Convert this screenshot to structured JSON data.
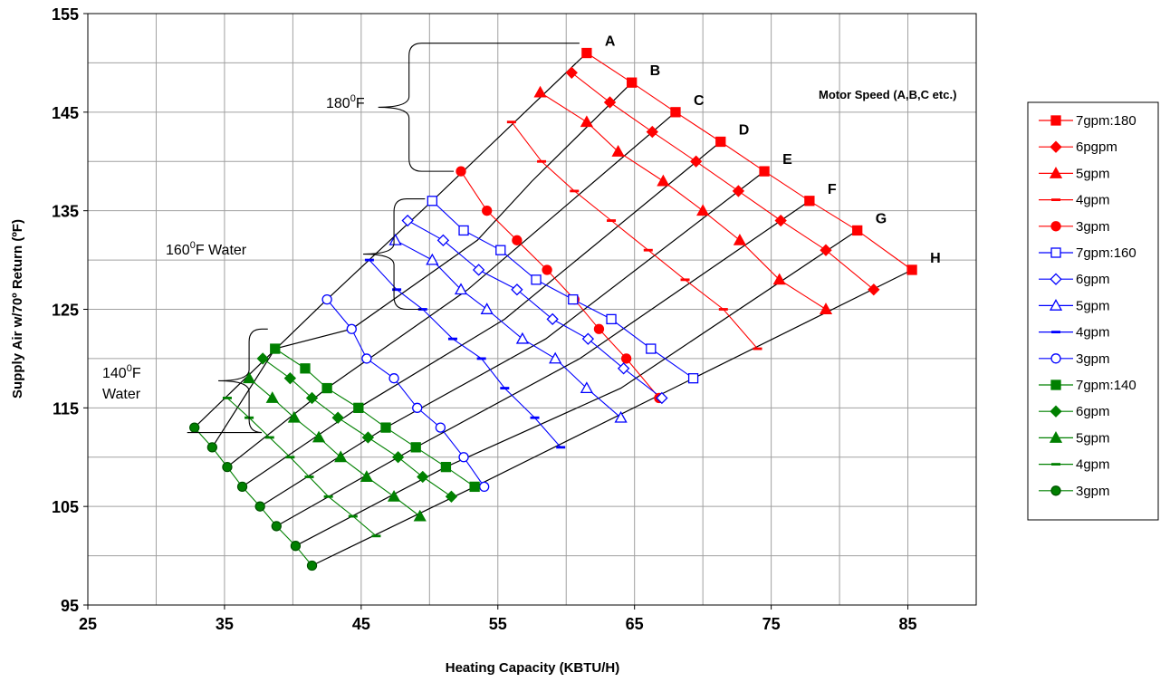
{
  "chart_data": {
    "type": "line",
    "title": "",
    "xlabel": "Heating Capacity (KBTU/H)",
    "ylabel": "Supply Air w/70º Return (ºF)",
    "xlim": [
      25,
      90
    ],
    "ylim": [
      95,
      155
    ],
    "xticks": [
      "25",
      "35",
      "45",
      "55",
      "65",
      "75",
      "85"
    ],
    "xtick_values": [
      25,
      35,
      45,
      55,
      65,
      75,
      85
    ],
    "yticks": [
      "95",
      "105",
      "115",
      "125",
      "135",
      "145",
      "155"
    ],
    "ytick_values": [
      95,
      105,
      115,
      125,
      135,
      145,
      155
    ],
    "grid": true,
    "legend_position": "right",
    "annotations": {
      "bracket_180": "180",
      "bracket_180_unit": "F",
      "bracket_160": "160",
      "bracket_160_unit": "F Water",
      "bracket_140": "140",
      "bracket_140_unit": "F",
      "bracket_140_line2": "Water",
      "degree_sup": "0",
      "motor_speed": "Motor Speed (A,B,C etc.)",
      "speed_letters": [
        "A",
        "B",
        "C",
        "D",
        "E",
        "F",
        "G",
        "H"
      ]
    },
    "speed_lines": [
      {
        "label": "A",
        "points": [
          [
            32.8,
            113
          ],
          [
            42.5,
            126
          ],
          [
            50.2,
            136
          ],
          [
            61.5,
            151
          ]
        ]
      },
      {
        "label": "B",
        "points": [
          [
            34.1,
            111
          ],
          [
            38.7,
            121
          ],
          [
            44.3,
            123
          ],
          [
            53.5,
            132
          ],
          [
            57.5,
            138
          ],
          [
            64.8,
            148
          ]
        ]
      },
      {
        "label": "C",
        "points": [
          [
            35.2,
            109
          ],
          [
            42.5,
            117
          ],
          [
            52.8,
            127
          ],
          [
            68,
            145
          ]
        ]
      },
      {
        "label": "D",
        "points": [
          [
            36.3,
            107
          ],
          [
            44.8,
            115
          ],
          [
            55.5,
            124
          ],
          [
            71.3,
            142
          ]
        ]
      },
      {
        "label": "E",
        "points": [
          [
            37.6,
            105
          ],
          [
            46.8,
            113
          ],
          [
            58.5,
            122
          ],
          [
            74.5,
            139
          ]
        ]
      },
      {
        "label": "F",
        "points": [
          [
            38.8,
            103
          ],
          [
            49,
            111
          ],
          [
            61,
            120
          ],
          [
            77.8,
            136
          ]
        ]
      },
      {
        "label": "G",
        "points": [
          [
            40.2,
            101
          ],
          [
            51.2,
            109
          ],
          [
            64,
            117
          ],
          [
            81.3,
            133
          ]
        ]
      },
      {
        "label": "H",
        "points": [
          [
            41.4,
            99
          ],
          [
            53.3,
            107
          ],
          [
            69.3,
            118
          ],
          [
            85.3,
            129
          ]
        ]
      }
    ],
    "brackets": [
      {
        "label": "180",
        "x": 48.5,
        "y_top": 152,
        "y_bottom": 139
      },
      {
        "label": "160",
        "x": 47.4,
        "y_top": 136.2,
        "y_bottom": 125
      },
      {
        "label": "140",
        "x": 36.8,
        "y_top": 123,
        "y_bottom": 112.5
      }
    ],
    "series": [
      {
        "name": "7gpm:180",
        "color": "#ff0000",
        "marker": "square",
        "filled": true,
        "points": [
          [
            61.5,
            151
          ],
          [
            64.8,
            148
          ],
          [
            68,
            145
          ],
          [
            71.3,
            142
          ],
          [
            74.5,
            139
          ],
          [
            77.8,
            136
          ],
          [
            81.3,
            133
          ],
          [
            85.3,
            129
          ]
        ]
      },
      {
        "name": "6pgpm",
        "color": "#ff0000",
        "marker": "diamond",
        "filled": true,
        "points": [
          [
            60.4,
            149
          ],
          [
            63.2,
            146
          ],
          [
            66.3,
            143
          ],
          [
            69.5,
            140
          ],
          [
            72.6,
            137
          ],
          [
            75.7,
            134
          ],
          [
            79,
            131
          ],
          [
            82.5,
            127
          ]
        ]
      },
      {
        "name": "5gpm",
        "color": "#ff0000",
        "marker": "triangle",
        "filled": true,
        "points": [
          [
            58.1,
            147
          ],
          [
            61.5,
            144
          ],
          [
            63.8,
            141
          ],
          [
            67.1,
            138
          ],
          [
            70,
            135
          ],
          [
            72.7,
            132
          ],
          [
            75.6,
            128
          ],
          [
            79,
            125
          ]
        ]
      },
      {
        "name": "4gpm",
        "color": "#ff0000",
        "marker": "dash",
        "filled": true,
        "points": [
          [
            56,
            144
          ],
          [
            58.2,
            140
          ],
          [
            60.6,
            137
          ],
          [
            63.3,
            134
          ],
          [
            66,
            131
          ],
          [
            68.7,
            128
          ],
          [
            71.5,
            125
          ],
          [
            74,
            121
          ]
        ]
      },
      {
        "name": "3gpm",
        "color": "#ff0000",
        "marker": "circle",
        "filled": true,
        "points": [
          [
            52.3,
            139
          ],
          [
            54.2,
            135
          ],
          [
            56.4,
            132
          ],
          [
            58.6,
            129
          ],
          [
            60.6,
            126
          ],
          [
            62.4,
            123
          ],
          [
            64.4,
            120
          ],
          [
            66.8,
            116
          ]
        ]
      },
      {
        "name": "7gpm:160",
        "color": "#0000ff",
        "marker": "square",
        "filled": false,
        "points": [
          [
            50.2,
            136
          ],
          [
            52.5,
            133
          ],
          [
            55.2,
            131
          ],
          [
            57.8,
            128
          ],
          [
            60.5,
            126
          ],
          [
            63.3,
            124
          ],
          [
            66.2,
            121
          ],
          [
            69.3,
            118
          ]
        ]
      },
      {
        "name": "6gpm",
        "color": "#0000ff",
        "marker": "diamond",
        "filled": false,
        "points": [
          [
            48.4,
            134
          ],
          [
            51,
            132
          ],
          [
            53.6,
            129
          ],
          [
            56.4,
            127
          ],
          [
            59,
            124
          ],
          [
            61.6,
            122
          ],
          [
            64.2,
            119
          ],
          [
            67,
            116
          ]
        ]
      },
      {
        "name": "5gpm",
        "color": "#0000ff",
        "marker": "triangle",
        "filled": false,
        "points": [
          [
            47.5,
            132
          ],
          [
            50.2,
            130
          ],
          [
            52.3,
            127
          ],
          [
            54.2,
            125
          ],
          [
            56.8,
            122
          ],
          [
            59.2,
            120
          ],
          [
            61.5,
            117
          ],
          [
            64,
            114
          ]
        ]
      },
      {
        "name": "4gpm",
        "color": "#0000ff",
        "marker": "dash",
        "filled": false,
        "points": [
          [
            45.6,
            130
          ],
          [
            47.6,
            127
          ],
          [
            49.5,
            125
          ],
          [
            51.7,
            122
          ],
          [
            53.8,
            120
          ],
          [
            55.5,
            117
          ],
          [
            57.7,
            114
          ],
          [
            59.6,
            111
          ]
        ]
      },
      {
        "name": "3gpm",
        "color": "#0000ff",
        "marker": "circle",
        "filled": false,
        "points": [
          [
            42.5,
            126
          ],
          [
            44.3,
            123
          ],
          [
            45.4,
            120
          ],
          [
            47.4,
            118
          ],
          [
            49.1,
            115
          ],
          [
            50.8,
            113
          ],
          [
            52.5,
            110
          ],
          [
            54,
            107
          ]
        ]
      },
      {
        "name": "7gpm:140",
        "color": "#008000",
        "marker": "square",
        "filled": true,
        "points": [
          [
            38.7,
            121
          ],
          [
            40.9,
            119
          ],
          [
            42.5,
            117
          ],
          [
            44.8,
            115
          ],
          [
            46.8,
            113
          ],
          [
            49,
            111
          ],
          [
            51.2,
            109
          ],
          [
            53.3,
            107
          ]
        ]
      },
      {
        "name": "6gpm",
        "color": "#008000",
        "marker": "diamond",
        "filled": true,
        "points": [
          [
            37.8,
            120
          ],
          [
            39.8,
            118
          ],
          [
            41.4,
            116
          ],
          [
            43.3,
            114
          ],
          [
            45.5,
            112
          ],
          [
            47.7,
            110
          ],
          [
            49.5,
            108
          ],
          [
            51.6,
            106
          ]
        ]
      },
      {
        "name": "5gpm",
        "color": "#008000",
        "marker": "triangle",
        "filled": true,
        "points": [
          [
            36.8,
            118
          ],
          [
            38.5,
            116
          ],
          [
            40.1,
            114
          ],
          [
            41.9,
            112
          ],
          [
            43.5,
            110
          ],
          [
            45.4,
            108
          ],
          [
            47.4,
            106
          ],
          [
            49.3,
            104
          ]
        ]
      },
      {
        "name": "4gpm",
        "color": "#008000",
        "marker": "dash",
        "filled": true,
        "points": [
          [
            35.2,
            116
          ],
          [
            36.8,
            114
          ],
          [
            38.3,
            112
          ],
          [
            39.8,
            110
          ],
          [
            41.2,
            108
          ],
          [
            42.6,
            106
          ],
          [
            44.4,
            104
          ],
          [
            46.1,
            102
          ]
        ]
      },
      {
        "name": "3gpm",
        "color": "#008000",
        "marker": "circle",
        "filled": true,
        "points": [
          [
            32.8,
            113
          ],
          [
            34.1,
            111
          ],
          [
            35.2,
            109
          ],
          [
            36.3,
            107
          ],
          [
            37.6,
            105
          ],
          [
            38.8,
            103
          ],
          [
            40.2,
            101
          ],
          [
            41.4,
            99
          ]
        ]
      }
    ]
  }
}
